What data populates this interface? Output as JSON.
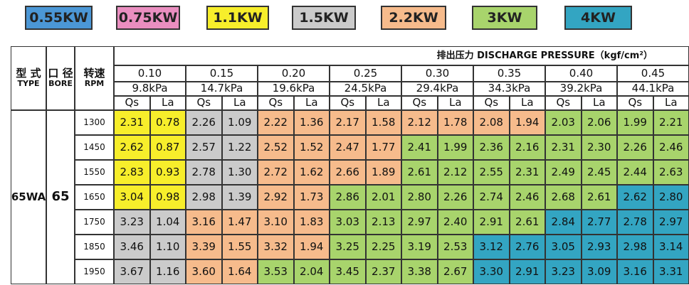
{
  "legend": [
    {
      "label": "0.55KW",
      "color": "#4b97d6"
    },
    {
      "label": "0.75KW",
      "color": "#ea8ec0"
    },
    {
      "label": "1.1KW",
      "color": "#f7ee2b"
    },
    {
      "label": "1.5KW",
      "color": "#cbcbcb"
    },
    {
      "label": "2.2KW",
      "color": "#f6bb8c"
    },
    {
      "label": "3KW",
      "color": "#a8d46c"
    },
    {
      "label": "4KW",
      "color": "#33a5c2"
    }
  ],
  "table": {
    "type_cn": "型 式",
    "type_en": "TYPE",
    "bore_cn": "口 径",
    "bore_en": "BORE",
    "rpm_cn": "转速",
    "rpm_en": "RPM",
    "pressure_title": "排出压力 DISCHARGE PRESSURE（kgf/cm²）",
    "pressures": [
      "0.10",
      "0.15",
      "0.20",
      "0.25",
      "0.30",
      "0.35",
      "0.40",
      "0.45"
    ],
    "kpa": [
      "9.8kPa",
      "14.7kPa",
      "19.6kPa",
      "24.5kPa",
      "29.4kPa",
      "34.3kPa",
      "39.2kPa",
      "44.1kPa"
    ],
    "sub": [
      "Qs",
      "La"
    ],
    "model": "65WA",
    "bore": "65",
    "rows": [
      {
        "rpm": "1300",
        "cells": [
          "2.31",
          "0.78",
          "2.26",
          "1.09",
          "2.22",
          "1.36",
          "2.17",
          "1.58",
          "2.12",
          "1.78",
          "2.08",
          "1.94",
          "2.03",
          "2.06",
          "1.99",
          "2.21"
        ],
        "fills": [
          "#f7ee2b",
          "#cbcbcb",
          "#f6bb8c",
          "#f6bb8c",
          "#f6bb8c",
          "#f6bb8c",
          "#a8d46c",
          "#a8d46c"
        ]
      },
      {
        "rpm": "1450",
        "cells": [
          "2.62",
          "0.87",
          "2.57",
          "1.22",
          "2.52",
          "1.52",
          "2.47",
          "1.77",
          "2.41",
          "1.99",
          "2.36",
          "2.16",
          "2.31",
          "2.30",
          "2.26",
          "2.46"
        ],
        "fills": [
          "#f7ee2b",
          "#cbcbcb",
          "#f6bb8c",
          "#f6bb8c",
          "#a8d46c",
          "#a8d46c",
          "#a8d46c",
          "#a8d46c"
        ]
      },
      {
        "rpm": "1550",
        "cells": [
          "2.83",
          "0.93",
          "2.78",
          "1.30",
          "2.72",
          "1.62",
          "2.66",
          "1.89",
          "2.61",
          "2.12",
          "2.55",
          "2.31",
          "2.49",
          "2.45",
          "2.44",
          "2.63"
        ],
        "fills": [
          "#f7ee2b",
          "#cbcbcb",
          "#f6bb8c",
          "#f6bb8c",
          "#a8d46c",
          "#a8d46c",
          "#a8d46c",
          "#a8d46c"
        ]
      },
      {
        "rpm": "1650",
        "cells": [
          "3.04",
          "0.98",
          "2.98",
          "1.39",
          "2.92",
          "1.73",
          "2.86",
          "2.01",
          "2.80",
          "2.26",
          "2.74",
          "2.46",
          "2.68",
          "2.61",
          "2.62",
          "2.80"
        ],
        "fills": [
          "#f7ee2b",
          "#cbcbcb",
          "#f6bb8c",
          "#a8d46c",
          "#a8d46c",
          "#a8d46c",
          "#a8d46c",
          "#33a5c2"
        ]
      },
      {
        "rpm": "1750",
        "cells": [
          "3.23",
          "1.04",
          "3.16",
          "1.47",
          "3.10",
          "1.83",
          "3.03",
          "2.13",
          "2.97",
          "2.40",
          "2.91",
          "2.61",
          "2.84",
          "2.77",
          "2.78",
          "2.97"
        ],
        "fills": [
          "#cbcbcb",
          "#f6bb8c",
          "#f6bb8c",
          "#a8d46c",
          "#a8d46c",
          "#a8d46c",
          "#33a5c2",
          "#33a5c2"
        ]
      },
      {
        "rpm": "1850",
        "cells": [
          "3.46",
          "1.10",
          "3.39",
          "1.55",
          "3.32",
          "1.94",
          "3.25",
          "2.25",
          "3.19",
          "2.53",
          "3.12",
          "2.76",
          "3.05",
          "2.93",
          "2.98",
          "3.14"
        ],
        "fills": [
          "#cbcbcb",
          "#f6bb8c",
          "#f6bb8c",
          "#a8d46c",
          "#a8d46c",
          "#33a5c2",
          "#33a5c2",
          "#33a5c2"
        ]
      },
      {
        "rpm": "1950",
        "cells": [
          "3.67",
          "1.16",
          "3.60",
          "1.64",
          "3.53",
          "2.04",
          "3.45",
          "2.37",
          "3.38",
          "2.67",
          "3.30",
          "2.91",
          "3.23",
          "3.09",
          "3.16",
          "3.31"
        ],
        "fills": [
          "#cbcbcb",
          "#f6bb8c",
          "#a8d46c",
          "#a8d46c",
          "#a8d46c",
          "#33a5c2",
          "#33a5c2",
          "#33a5c2"
        ]
      }
    ]
  }
}
